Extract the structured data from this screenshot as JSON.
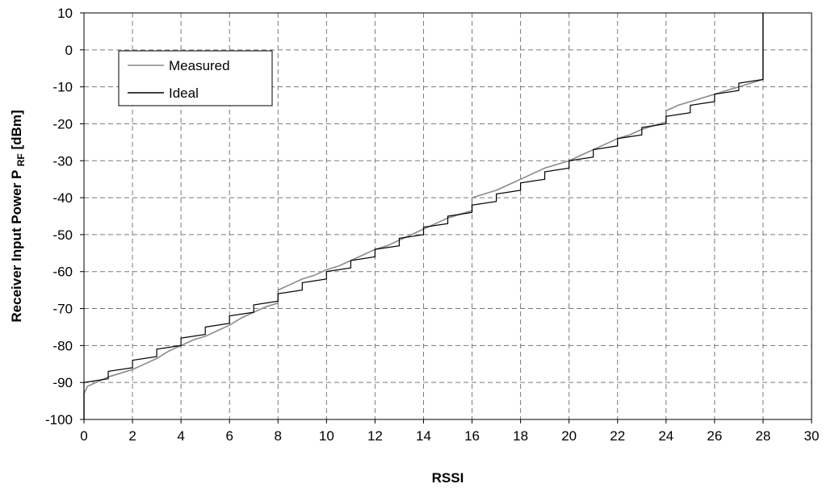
{
  "chart_data": {
    "type": "line",
    "xlabel": "RSSI",
    "ylabel": "Receiver Input Power P",
    "ylabel_subscript": "RF",
    "ylabel_unit": "[dBm]",
    "xlim": [
      0,
      30
    ],
    "ylim": [
      -100,
      10
    ],
    "xticks": [
      "0",
      "2",
      "4",
      "6",
      "8",
      "10",
      "12",
      "14",
      "16",
      "18",
      "20",
      "22",
      "24",
      "26",
      "28",
      "30"
    ],
    "yticks": [
      "10",
      "0",
      "-10",
      "-20",
      "-30",
      "-40",
      "-50",
      "-60",
      "-70",
      "-80",
      "-90",
      "-100"
    ],
    "grid": true,
    "legend_position": "top-left",
    "series": [
      {
        "name": "Measured",
        "color": "#8a8a8a",
        "points": [
          [
            0,
            -100
          ],
          [
            0,
            -93
          ],
          [
            0.15,
            -91
          ],
          [
            0.5,
            -90
          ],
          [
            1,
            -88.5
          ],
          [
            1.5,
            -87.5
          ],
          [
            2,
            -86.5
          ],
          [
            2.5,
            -85
          ],
          [
            3,
            -83.5
          ],
          [
            3.5,
            -81.5
          ],
          [
            4,
            -80
          ],
          [
            4.5,
            -78.5
          ],
          [
            5,
            -77.5
          ],
          [
            5.5,
            -76
          ],
          [
            6,
            -74.5
          ],
          [
            6.5,
            -72.5
          ],
          [
            7,
            -71
          ],
          [
            7.5,
            -69.5
          ],
          [
            8,
            -68.5
          ],
          [
            8,
            -65
          ],
          [
            8.5,
            -63.5
          ],
          [
            9,
            -62
          ],
          [
            9.5,
            -61
          ],
          [
            10,
            -59.5
          ],
          [
            10.5,
            -58.5
          ],
          [
            11,
            -57
          ],
          [
            11.5,
            -55.5
          ],
          [
            12,
            -54
          ],
          [
            12.5,
            -53
          ],
          [
            13,
            -51.5
          ],
          [
            13.5,
            -50
          ],
          [
            14,
            -48.5
          ],
          [
            14.5,
            -47
          ],
          [
            15,
            -45.5
          ],
          [
            15.5,
            -44.5
          ],
          [
            16,
            -43.5
          ],
          [
            16,
            -40
          ],
          [
            16.5,
            -39
          ],
          [
            17,
            -38
          ],
          [
            17.5,
            -36.5
          ],
          [
            18,
            -35
          ],
          [
            18.5,
            -33.5
          ],
          [
            19,
            -32
          ],
          [
            19.5,
            -31
          ],
          [
            20,
            -30
          ],
          [
            20.5,
            -28.5
          ],
          [
            21,
            -27
          ],
          [
            21.5,
            -25.5
          ],
          [
            22,
            -24
          ],
          [
            22.5,
            -23
          ],
          [
            23,
            -21.5
          ],
          [
            23.5,
            -20.5
          ],
          [
            24,
            -19.5
          ],
          [
            24,
            -16.5
          ],
          [
            24.5,
            -15
          ],
          [
            25,
            -14
          ],
          [
            25.5,
            -13
          ],
          [
            26,
            -12
          ],
          [
            26.5,
            -11
          ],
          [
            27,
            -10
          ],
          [
            27.5,
            -9
          ],
          [
            28,
            -8
          ],
          [
            28,
            10
          ]
        ]
      },
      {
        "name": "Ideal",
        "color": "#000000",
        "points": [
          [
            0,
            -100
          ],
          [
            0,
            -90
          ],
          [
            1,
            -89
          ],
          [
            1,
            -87
          ],
          [
            2,
            -86
          ],
          [
            2,
            -84
          ],
          [
            3,
            -83
          ],
          [
            3,
            -81
          ],
          [
            4,
            -80
          ],
          [
            4,
            -78
          ],
          [
            5,
            -77
          ],
          [
            5,
            -75
          ],
          [
            6,
            -74
          ],
          [
            6,
            -72
          ],
          [
            7,
            -71
          ],
          [
            7,
            -69
          ],
          [
            8,
            -68
          ],
          [
            8,
            -66
          ],
          [
            9,
            -65
          ],
          [
            9,
            -63
          ],
          [
            10,
            -62
          ],
          [
            10,
            -60
          ],
          [
            11,
            -59
          ],
          [
            11,
            -57
          ],
          [
            12,
            -56
          ],
          [
            12,
            -54
          ],
          [
            13,
            -53
          ],
          [
            13,
            -51
          ],
          [
            14,
            -50
          ],
          [
            14,
            -48
          ],
          [
            15,
            -47
          ],
          [
            15,
            -45
          ],
          [
            16,
            -44
          ],
          [
            16,
            -42
          ],
          [
            17,
            -41
          ],
          [
            17,
            -39
          ],
          [
            18,
            -38
          ],
          [
            18,
            -36
          ],
          [
            19,
            -35
          ],
          [
            19,
            -33
          ],
          [
            20,
            -32
          ],
          [
            20,
            -30
          ],
          [
            21,
            -29
          ],
          [
            21,
            -27
          ],
          [
            22,
            -26
          ],
          [
            22,
            -24
          ],
          [
            23,
            -23
          ],
          [
            23,
            -21
          ],
          [
            24,
            -20
          ],
          [
            24,
            -18
          ],
          [
            25,
            -17
          ],
          [
            25,
            -15
          ],
          [
            26,
            -14
          ],
          [
            26,
            -12
          ],
          [
            27,
            -11
          ],
          [
            27,
            -9
          ],
          [
            28,
            -8
          ],
          [
            28,
            10
          ]
        ]
      }
    ]
  }
}
